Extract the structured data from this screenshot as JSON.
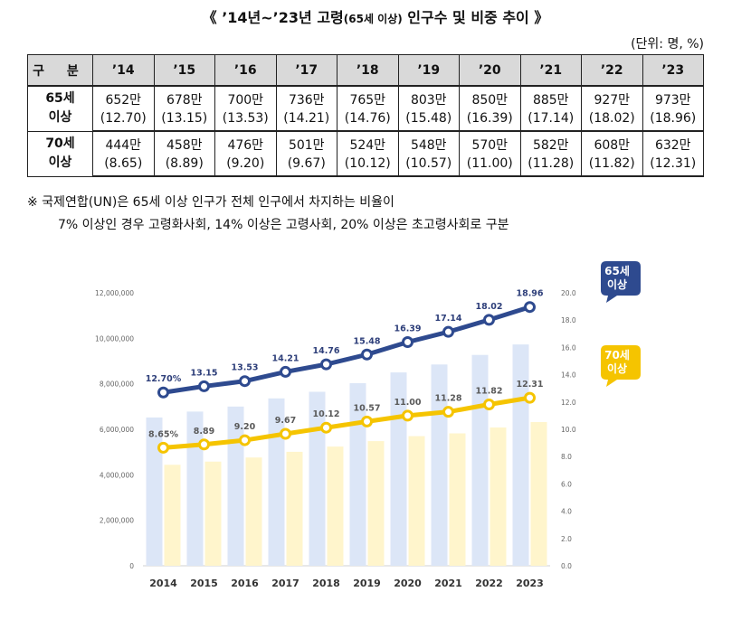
{
  "title": {
    "part1": "《 ’14년~’23년 고령",
    "part2": "(65세 이상)",
    "part3": " 인구수 및 비중 추이 》"
  },
  "unit_label": "(단위: 명, %)",
  "table": {
    "header_label": "구 분",
    "years": [
      "’14",
      "’15",
      "’16",
      "’17",
      "’18",
      "’19",
      "’20",
      "’21",
      "’22",
      "’23"
    ],
    "rows": [
      {
        "label_line1": "65세",
        "label_line2": "이상",
        "counts": [
          "652만",
          "678만",
          "700만",
          "736만",
          "765만",
          "803만",
          "850만",
          "885만",
          "927만",
          "973만"
        ],
        "ratios": [
          "(12.70)",
          "(13.15)",
          "(13.53)",
          "(14.21)",
          "(14.76)",
          "(15.48)",
          "(16.39)",
          "(17.14)",
          "(18.02)",
          "(18.96)"
        ]
      },
      {
        "label_line1": "70세",
        "label_line2": "이상",
        "counts": [
          "444만",
          "458만",
          "476만",
          "501만",
          "524만",
          "548만",
          "570만",
          "582만",
          "608만",
          "632만"
        ],
        "ratios": [
          "(8.65)",
          "(8.89)",
          "(9.20)",
          "(9.67)",
          "(10.12)",
          "(10.57)",
          "(11.00)",
          "(11.28)",
          "(11.82)",
          "(12.31)"
        ]
      }
    ]
  },
  "note": {
    "line1": "※ 국제연합(UN)은 65세 이상 인구가 전체 인구에서 차지하는 비율이",
    "line2": "7% 이상인 경우 고령화사회, 14% 이상은 고령사회, 20% 이상은 초고령사회로 구분"
  },
  "colors": {
    "bar65": "#dce6f7",
    "bar70": "#fff5cc",
    "line65": "#2e4a8f",
    "line70": "#f5c400",
    "label65": "#2e3f7a",
    "label70": "#5a5a5a",
    "callout65": "#2e4a8f",
    "callout70": "#f5c400"
  },
  "chart_data": {
    "type": "bar+line",
    "categories": [
      "2014",
      "2015",
      "2016",
      "2017",
      "2018",
      "2019",
      "2020",
      "2021",
      "2022",
      "2023"
    ],
    "bar_series": [
      {
        "name": "65세 이상 인구",
        "values": [
          6520000,
          6780000,
          7000000,
          7360000,
          7650000,
          8030000,
          8500000,
          8850000,
          9270000,
          9730000
        ]
      },
      {
        "name": "70세 이상 인구",
        "values": [
          4440000,
          4580000,
          4760000,
          5010000,
          5240000,
          5480000,
          5700000,
          5820000,
          6080000,
          6320000
        ]
      }
    ],
    "line_series": [
      {
        "name": "65세 이상 비중",
        "values": [
          12.7,
          13.15,
          13.53,
          14.21,
          14.76,
          15.48,
          16.39,
          17.14,
          18.02,
          18.96
        ],
        "labels": [
          "12.70%",
          "13.15",
          "13.53",
          "14.21",
          "14.76",
          "15.48",
          "16.39",
          "17.14",
          "18.02",
          "18.96"
        ]
      },
      {
        "name": "70세 이상 비중",
        "values": [
          8.65,
          8.89,
          9.2,
          9.67,
          10.12,
          10.57,
          11.0,
          11.28,
          11.82,
          12.31
        ],
        "labels": [
          "8.65%",
          "8.89",
          "9.20",
          "9.67",
          "10.12",
          "10.57",
          "11.00",
          "11.28",
          "11.82",
          "12.31"
        ]
      }
    ],
    "left_axis": {
      "ylim": [
        0,
        12000000
      ],
      "ticks": [
        0,
        2000000,
        4000000,
        6000000,
        8000000,
        10000000,
        12000000
      ],
      "tick_labels": [
        "0",
        "2,000,000",
        "4,000,000",
        "6,000,000",
        "8,000,000",
        "10,000,000",
        "12,000,000"
      ]
    },
    "right_axis": {
      "ylim": [
        0,
        20
      ],
      "ticks": [
        0,
        2,
        4,
        6,
        8,
        10,
        12,
        14,
        16,
        18,
        20
      ],
      "tick_labels": [
        "0.0",
        "2.0",
        "4.0",
        "6.0",
        "8.0",
        "10.0",
        "12.0",
        "14.0",
        "16.0",
        "18.0",
        "20.0"
      ]
    },
    "callouts": [
      {
        "series": "65세 이상 비중",
        "line1": "65세",
        "line2": "이상"
      },
      {
        "series": "70세 이상 비중",
        "line1": "70세",
        "line2": "이상"
      }
    ]
  }
}
